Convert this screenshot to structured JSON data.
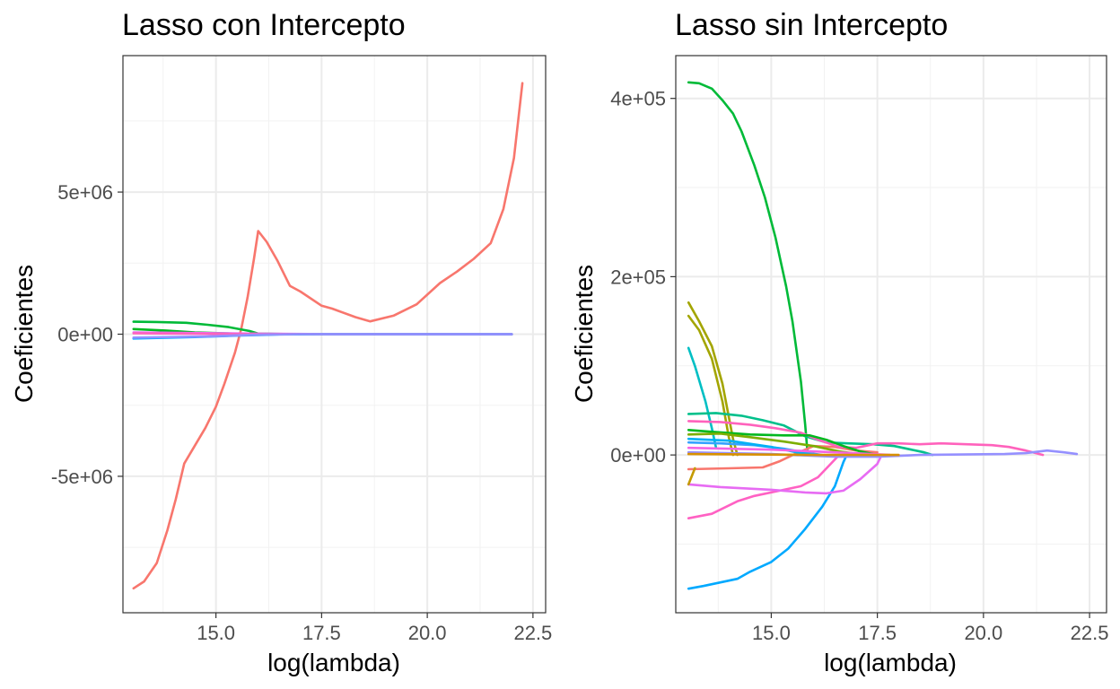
{
  "chart_data": [
    {
      "type": "line",
      "title": "Lasso con Intercepto",
      "xlabel": "log(lambda)",
      "ylabel": "Coeficientes",
      "xlim": [
        12.8,
        22.8
      ],
      "ylim": [
        -9800000,
        9800000
      ],
      "x_ticks": [
        15,
        17.5,
        20,
        22.5
      ],
      "x_tick_labels": [
        "15.0",
        "17.5",
        "20.0",
        "22.5"
      ],
      "y_ticks": [
        -5000000,
        0,
        5000000
      ],
      "y_tick_labels": [
        "-5e+06",
        "0e+00",
        "5e+06"
      ],
      "grid": true,
      "legend": "none",
      "series": [
        {
          "color": "#F8766D",
          "points": [
            [
              13.05,
              -8940000
            ],
            [
              13.3,
              -8700000
            ],
            [
              13.6,
              -8050000
            ],
            [
              13.85,
              -6900000
            ],
            [
              14.05,
              -5800000
            ],
            [
              14.25,
              -4550000
            ],
            [
              14.45,
              -4050000
            ],
            [
              14.75,
              -3300000
            ],
            [
              15.0,
              -2550000
            ],
            [
              15.2,
              -1750000
            ],
            [
              15.45,
              -650000
            ],
            [
              15.6,
              200000
            ],
            [
              15.75,
              1300000
            ],
            [
              15.9,
              2650000
            ],
            [
              16.0,
              3630000
            ],
            [
              16.2,
              3250000
            ],
            [
              16.45,
              2600000
            ],
            [
              16.75,
              1700000
            ],
            [
              17.0,
              1500000
            ],
            [
              17.5,
              1000000
            ],
            [
              17.75,
              900000
            ],
            [
              18.3,
              600000
            ],
            [
              18.65,
              450000
            ],
            [
              19.2,
              650000
            ],
            [
              19.75,
              1050000
            ],
            [
              20.3,
              1800000
            ],
            [
              20.7,
              2200000
            ],
            [
              21.1,
              2650000
            ],
            [
              21.5,
              3200000
            ],
            [
              21.8,
              4400000
            ],
            [
              22.05,
              6200000
            ],
            [
              22.25,
              8830000
            ]
          ]
        },
        {
          "color": "#00BA38",
          "points": [
            [
              13.05,
              440000
            ],
            [
              13.6,
              430000
            ],
            [
              14.3,
              400000
            ],
            [
              14.8,
              330000
            ],
            [
              15.3,
              250000
            ],
            [
              15.8,
              110000
            ],
            [
              16.0,
              20000
            ],
            [
              17.0,
              0
            ],
            [
              22.0,
              0
            ]
          ]
        },
        {
          "color": "#00B81F",
          "points": [
            [
              13.05,
              180000
            ],
            [
              13.8,
              130000
            ],
            [
              14.5,
              60000
            ],
            [
              15.5,
              20000
            ],
            [
              17.0,
              0
            ]
          ]
        },
        {
          "color": "#E76BF3",
          "points": [
            [
              13.05,
              60000
            ],
            [
              14.5,
              40000
            ],
            [
              16.0,
              20000
            ],
            [
              18.0,
              0
            ],
            [
              22.0,
              0
            ]
          ]
        },
        {
          "color": "#FF62BC",
          "points": [
            [
              13.05,
              30000
            ],
            [
              15.0,
              10000
            ],
            [
              17.0,
              0
            ],
            [
              22.0,
              0
            ]
          ]
        },
        {
          "color": "#00A9FF",
          "points": [
            [
              13.05,
              -150000
            ],
            [
              14.5,
              -100000
            ],
            [
              15.5,
              -50000
            ],
            [
              16.5,
              -10000
            ],
            [
              17.5,
              0
            ],
            [
              22.0,
              0
            ]
          ]
        },
        {
          "color": "#9590FF",
          "points": [
            [
              13.05,
              -120000
            ],
            [
              14.8,
              -80000
            ],
            [
              16.0,
              -20000
            ],
            [
              17.0,
              0
            ],
            [
              22.0,
              0
            ]
          ]
        }
      ]
    },
    {
      "type": "line",
      "title": "Lasso sin Intercepto",
      "xlabel": "log(lambda)",
      "ylabel": "Coeficientes",
      "xlim": [
        12.75,
        22.9
      ],
      "ylim": [
        -177000,
        448000
      ],
      "x_ticks": [
        15,
        17.5,
        20,
        22.5
      ],
      "x_tick_labels": [
        "15.0",
        "17.5",
        "20.0",
        "22.5"
      ],
      "y_ticks": [
        0,
        200000,
        400000
      ],
      "y_tick_labels": [
        "0e+00",
        "2e+05",
        "4e+05"
      ],
      "grid": true,
      "legend": "none",
      "series": [
        {
          "color": "#00BA38",
          "points": [
            [
              13.05,
              418000
            ],
            [
              13.3,
              417000
            ],
            [
              13.6,
              411000
            ],
            [
              13.85,
              398000
            ],
            [
              14.1,
              383000
            ],
            [
              14.3,
              363000
            ],
            [
              14.6,
              325000
            ],
            [
              14.85,
              289000
            ],
            [
              15.1,
              244000
            ],
            [
              15.35,
              189000
            ],
            [
              15.5,
              150000
            ],
            [
              15.7,
              82000
            ],
            [
              15.8,
              34000
            ],
            [
              15.85,
              5000
            ]
          ]
        },
        {
          "color": "#A3A500",
          "points": [
            [
              13.05,
              171000
            ],
            [
              13.3,
              150000
            ],
            [
              13.6,
              122000
            ],
            [
              13.85,
              80000
            ],
            [
              14.1,
              18000
            ],
            [
              14.2,
              0
            ]
          ]
        },
        {
          "color": "#A3A500",
          "points": [
            [
              13.05,
              156000
            ],
            [
              13.3,
              140000
            ],
            [
              13.6,
              108000
            ],
            [
              13.85,
              60000
            ],
            [
              14.0,
              20000
            ],
            [
              14.1,
              0
            ]
          ]
        },
        {
          "color": "#00BFC4",
          "points": [
            [
              13.05,
              120000
            ],
            [
              13.2,
              100000
            ],
            [
              13.45,
              60000
            ],
            [
              13.6,
              30000
            ],
            [
              13.7,
              8000
            ]
          ]
        },
        {
          "color": "#00A9FF",
          "points": [
            [
              13.05,
              -150000
            ],
            [
              13.4,
              -147000
            ],
            [
              13.8,
              -143000
            ],
            [
              14.2,
              -139000
            ],
            [
              14.5,
              -131000
            ],
            [
              15.0,
              -120000
            ],
            [
              15.4,
              -105000
            ],
            [
              15.8,
              -83000
            ],
            [
              16.2,
              -58000
            ],
            [
              16.5,
              -35000
            ],
            [
              16.7,
              -8000
            ],
            [
              16.8,
              2000
            ]
          ]
        },
        {
          "color": "#FF61C3",
          "points": [
            [
              13.05,
              -71000
            ],
            [
              13.6,
              -66000
            ],
            [
              14.2,
              -52000
            ],
            [
              14.6,
              -46000
            ],
            [
              15.2,
              -40000
            ],
            [
              15.7,
              -35000
            ],
            [
              16.1,
              -25000
            ],
            [
              16.4,
              -10000
            ],
            [
              16.6,
              0
            ]
          ]
        },
        {
          "color": "#E76BF3",
          "points": [
            [
              13.05,
              -33000
            ],
            [
              13.8,
              -36000
            ],
            [
              15.0,
              -39000
            ],
            [
              15.8,
              -42000
            ],
            [
              16.3,
              -43000
            ],
            [
              16.7,
              -40000
            ],
            [
              17.1,
              -27000
            ],
            [
              17.5,
              -10000
            ],
            [
              17.6,
              0
            ]
          ]
        },
        {
          "color": "#F8766D",
          "points": [
            [
              13.05,
              -16000
            ],
            [
              14.0,
              -15000
            ],
            [
              14.8,
              -14000
            ],
            [
              15.2,
              -7000
            ],
            [
              15.6,
              2000
            ],
            [
              16.0,
              10000
            ],
            [
              16.5,
              9000
            ],
            [
              17.0,
              5000
            ],
            [
              17.5,
              3000
            ]
          ]
        },
        {
          "color": "#C49A00",
          "points": [
            [
              13.05,
              -33000
            ],
            [
              13.2,
              -15000
            ]
          ]
        },
        {
          "color": "#00C08B",
          "points": [
            [
              13.05,
              46000
            ],
            [
              13.7,
              47000
            ],
            [
              14.3,
              44000
            ],
            [
              14.8,
              39000
            ],
            [
              15.3,
              33000
            ],
            [
              15.8,
              21000
            ],
            [
              16.3,
              14000
            ],
            [
              16.8,
              13000
            ],
            [
              17.4,
              12000
            ],
            [
              17.9,
              10000
            ],
            [
              18.3,
              6000
            ],
            [
              18.6,
              3000
            ],
            [
              18.8,
              0
            ]
          ]
        },
        {
          "color": "#FF62BC",
          "points": [
            [
              13.05,
              38000
            ],
            [
              13.8,
              37000
            ],
            [
              14.5,
              34000
            ],
            [
              15.1,
              30000
            ],
            [
              15.7,
              25000
            ],
            [
              16.1,
              17000
            ],
            [
              16.6,
              9000
            ],
            [
              17.0,
              8000
            ],
            [
              17.5,
              13000
            ],
            [
              18.0,
              13000
            ],
            [
              18.5,
              12000
            ],
            [
              19.0,
              13000
            ],
            [
              19.6,
              12000
            ],
            [
              20.2,
              11000
            ],
            [
              20.6,
              9000
            ],
            [
              21.0,
              5000
            ],
            [
              21.4,
              0
            ]
          ]
        },
        {
          "color": "#00B81F",
          "points": [
            [
              13.05,
              28000
            ],
            [
              13.6,
              26000
            ],
            [
              14.5,
              23000
            ],
            [
              15.3,
              22000
            ],
            [
              15.9,
              22000
            ],
            [
              16.3,
              17000
            ],
            [
              16.7,
              10000
            ],
            [
              17.1,
              4000
            ],
            [
              17.5,
              0
            ]
          ]
        },
        {
          "color": "#7CAE00",
          "points": [
            [
              13.05,
              23000
            ],
            [
              13.8,
              24000
            ],
            [
              14.5,
              20000
            ],
            [
              15.3,
              15000
            ],
            [
              16.0,
              10000
            ],
            [
              16.6,
              4000
            ],
            [
              17.2,
              0
            ]
          ]
        },
        {
          "color": "#35A2FF",
          "points": [
            [
              13.05,
              14000
            ],
            [
              13.8,
              13000
            ],
            [
              14.6,
              11000
            ],
            [
              15.3,
              7000
            ],
            [
              15.9,
              2000
            ],
            [
              16.2,
              0
            ]
          ]
        },
        {
          "color": "#00B0F6",
          "points": [
            [
              13.05,
              18000
            ],
            [
              14.0,
              16000
            ],
            [
              15.0,
              9000
            ],
            [
              15.6,
              3000
            ],
            [
              16.0,
              0
            ]
          ]
        },
        {
          "color": "#9590FF",
          "points": [
            [
              13.05,
              3000
            ],
            [
              15.0,
              1000
            ],
            [
              16.5,
              -2000
            ],
            [
              17.5,
              -2000
            ],
            [
              18.5,
              0
            ],
            [
              20.5,
              1000
            ],
            [
              21.0,
              2000
            ],
            [
              21.5,
              5000
            ],
            [
              21.9,
              3000
            ],
            [
              22.2,
              1000
            ]
          ]
        },
        {
          "color": "#F564E3",
          "points": [
            [
              13.05,
              8000
            ],
            [
              15.0,
              6000
            ],
            [
              16.5,
              3000
            ],
            [
              17.8,
              0
            ]
          ]
        },
        {
          "color": "#D89000",
          "points": [
            [
              13.05,
              1000
            ],
            [
              16.0,
              0
            ],
            [
              18.0,
              0
            ]
          ]
        }
      ]
    }
  ]
}
